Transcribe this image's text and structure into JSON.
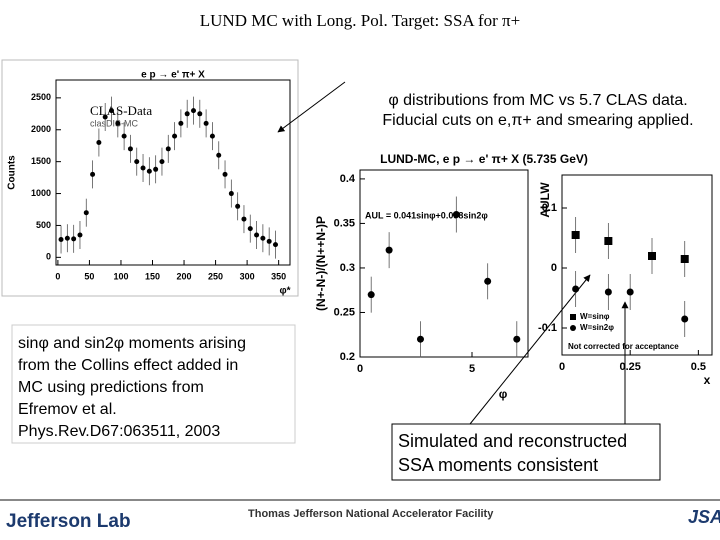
{
  "title": "LUND MC with Long. Pol. Target: SSA for π+",
  "caption": {
    "lines": [
      "φ  distributions from MC  vs 5.7 CLAS data.",
      "Fiducial cuts on e,π+ and smearing applied."
    ]
  },
  "note": {
    "lines": [
      "sinφ and sin2φ moments arising",
      "from the Collins effect added in",
      "MC using predictions  from",
      "Efremov et al.",
      "Phys.Rev.D67:063511, 2003"
    ]
  },
  "conclusion": {
    "lines": [
      "Simulated and reconstructed",
      "SSA moments consistent"
    ]
  },
  "footer": {
    "lab": "Jefferson Lab",
    "facility": "Thomas Jefferson National Accelerator Facility",
    "logo": "JSA"
  },
  "plots": [
    {
      "title": "e p → e' π+ X",
      "ylabel": "Counts",
      "xlabel": "φ*",
      "legend": [
        "CLAS-Data",
        "clasDIS-MC"
      ],
      "xlim": [
        -3,
        368
      ],
      "ylim": [
        -120,
        2780
      ],
      "xticks": [
        0,
        50,
        100,
        150,
        200,
        250,
        300,
        350
      ],
      "yticks": [
        0,
        500,
        1000,
        1500,
        2000,
        2500
      ],
      "series": [
        {
          "name": "CLAS-Data",
          "color": "#000000",
          "x": [
            5,
            15,
            25,
            35,
            45,
            55,
            65,
            75,
            85,
            95,
            105,
            115,
            125,
            135,
            145,
            155,
            165,
            175,
            185,
            195,
            205,
            215,
            225,
            235,
            245,
            255,
            265,
            275,
            285,
            295,
            305,
            315,
            325,
            335,
            345
          ],
          "values": [
            280,
            300,
            290,
            350,
            700,
            1300,
            1800,
            2200,
            2300,
            2100,
            1900,
            1700,
            1500,
            1400,
            1350,
            1380,
            1500,
            1700,
            1900,
            2100,
            2250,
            2300,
            2250,
            2100,
            1900,
            1600,
            1300,
            1000,
            800,
            600,
            450,
            350,
            300,
            250,
            200
          ]
        }
      ]
    },
    {
      "title": "LUND-MC, e p → e' π+ X (5.735 GeV)",
      "ylabel": "(N+-N-)/(N++N-)P",
      "xlabel": "φ",
      "annotation": "AUL = 0.041sinφ+0.038sin2φ",
      "xlim": [
        0,
        7.5
      ],
      "ylim": [
        0.2,
        0.41
      ],
      "xticks": [
        0,
        5
      ],
      "yticks": [
        0.2,
        0.25,
        0.3,
        0.35,
        0.4
      ],
      "series": [
        {
          "name": "LUND-MC",
          "color": "#000000",
          "x": [
            0.5,
            1.3,
            2.7,
            4.3,
            5.7,
            7.0
          ],
          "values": [
            0.27,
            0.32,
            0.22,
            0.36,
            0.285,
            0.22
          ]
        }
      ]
    },
    {
      "ylabel": "AULW",
      "xlabel": "x",
      "annotation": "Not corrected for acceptance",
      "xlim": [
        0,
        0.55
      ],
      "ylim": [
        -0.145,
        0.155
      ],
      "xticks": [
        0,
        0.25,
        0.5
      ],
      "yticks": [
        -0.1,
        0,
        0.1
      ],
      "series": [
        {
          "name": "W=sinφ",
          "color": "#000000",
          "marker": "square",
          "x": [
            0.05,
            0.17,
            0.33,
            0.45
          ],
          "values": [
            0.055,
            0.045,
            0.02,
            0.015
          ]
        },
        {
          "name": "W=sin2φ",
          "color": "#000000",
          "marker": "circle",
          "x": [
            0.05,
            0.17,
            0.25,
            0.45
          ],
          "values": [
            -0.035,
            -0.04,
            -0.04,
            -0.085
          ]
        }
      ]
    }
  ]
}
